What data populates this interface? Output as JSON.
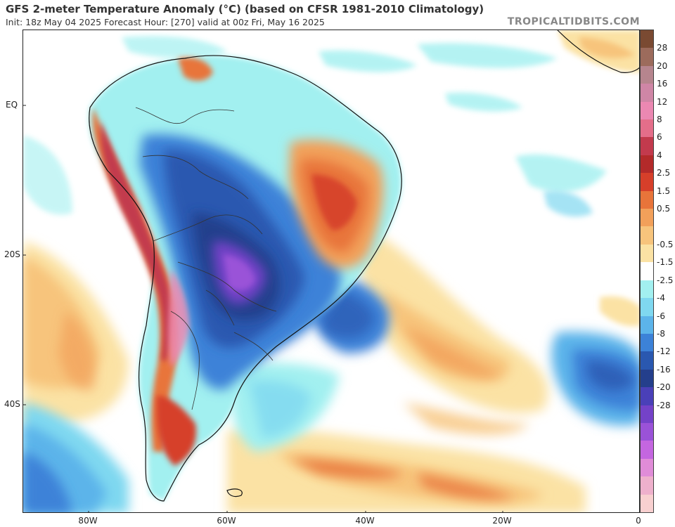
{
  "header": {
    "title": "GFS 2-meter Temperature Anomaly (°C) (based on CFSR 1981-2010 Climatology)",
    "subtitle": "Init: 18z May 04 2025   Forecast Hour: [270]   valid at 00z Fri, May 16 2025",
    "brand": "TROPICALTIDBITS.COM"
  },
  "axes": {
    "lat_labels": [
      "EQ",
      "20S",
      "40S"
    ],
    "lon_labels": [
      "80W",
      "60W",
      "40W",
      "20W",
      "0"
    ]
  },
  "colorbar": {
    "labels": [
      "28",
      "20",
      "16",
      "12",
      "8",
      "6",
      "4",
      "2.5",
      "1.5",
      "0.5",
      "-0.5",
      "-1.5",
      "-2.5",
      "-4",
      "-6",
      "-8",
      "-12",
      "-16",
      "-20",
      "-28"
    ],
    "colors": [
      "#7a4a32",
      "#9c6b5c",
      "#b6858e",
      "#cf86a6",
      "#eb88b2",
      "#e46e8a",
      "#c23a4d",
      "#b32a2a",
      "#d63f2a",
      "#e8743a",
      "#f2a05a",
      "#f7c47c",
      "#fbe2a4",
      "#ffffff",
      "#a2f0f0",
      "#7fd8f0",
      "#5cb4ea",
      "#3c82d8",
      "#2a58b0",
      "#243f8c",
      "#4a40b8",
      "#7442c8",
      "#9a52d8",
      "#c466e0",
      "#e08cd8",
      "#eeb0cc",
      "#f8d0d0"
    ]
  },
  "legend": {
    "units": "°C"
  }
}
